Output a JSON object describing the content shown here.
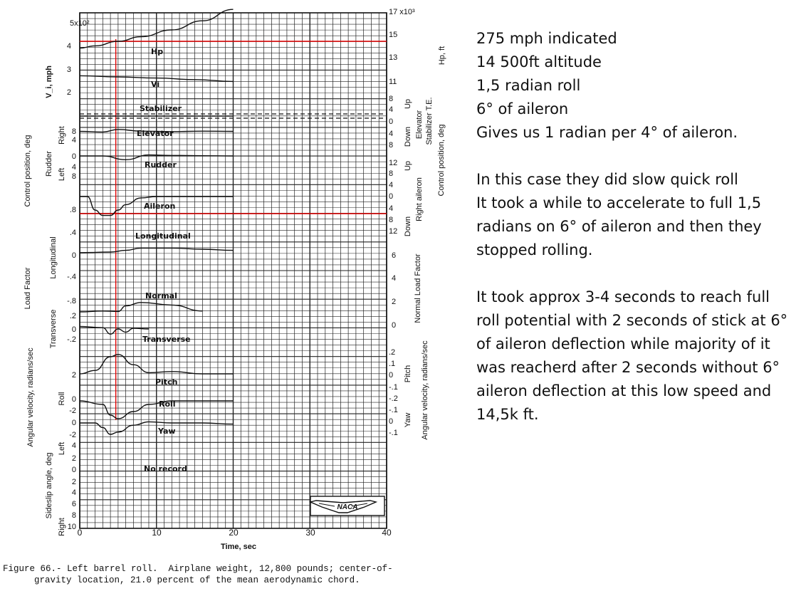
{
  "chart_data": {
    "type": "line",
    "caption_line1": "Figure 66.- Left barrel roll.  Airplane weight, 12,800 pounds; center-of-",
    "caption_line2": "gravity location, 21.0 percent of the mean aerodynamic chord.",
    "xlabel": "Time, sec",
    "x_ticks": [
      "0",
      "10",
      "20",
      "30",
      "40"
    ],
    "xlim": [
      0,
      40
    ],
    "grid": true,
    "logo": "NACA",
    "top_left_multiplier": "5x10²",
    "top_right_multiplier": "17 x10³",
    "left_axis_labels": {
      "velocity": "V_i, mph",
      "control": "Control position, deg",
      "rudder": "Rudder",
      "right": "Right",
      "left": "Left",
      "load": "Load Factor",
      "longitudinal": "Longitudinal",
      "transverse": "Transverse",
      "angular": "Angular velocity, radians/sec",
      "roll": "Roll",
      "sideslip": "Sideslip angle, deg",
      "sideslip_left": "Left",
      "sideslip_right": "Right"
    },
    "right_axis_labels": {
      "hp": "Hp, ft",
      "elevator": "Elevator",
      "stabilizer": "Stabilizer T.E.",
      "up": "Up",
      "down": "Down",
      "right_aileron": "Right aileron",
      "control_position": "Control position, deg",
      "normal": "Normal Load Factor",
      "pitch": "Pitch",
      "yaw": "Yaw",
      "angular": "Angular velocity, radians/sec"
    },
    "left_ticks": [
      {
        "label": "4"
      },
      {
        "label": "3"
      },
      {
        "label": "2"
      },
      {
        "label": "8"
      },
      {
        "label": "4"
      },
      {
        "label": "0"
      },
      {
        "label": "4"
      },
      {
        "label": "8"
      },
      {
        "label": ".8"
      },
      {
        "label": ".4"
      },
      {
        "label": "0"
      },
      {
        "label": "-.4"
      },
      {
        "label": "-.8"
      },
      {
        "label": ".2"
      },
      {
        "label": "0"
      },
      {
        "label": "-.2"
      },
      {
        "label": "2"
      },
      {
        "label": "0"
      },
      {
        "label": "-2"
      },
      {
        "label": "0"
      },
      {
        "label": "-2"
      },
      {
        "label": "4"
      },
      {
        "label": "2"
      },
      {
        "label": "0"
      },
      {
        "label": "2"
      },
      {
        "label": "4"
      },
      {
        "label": "6"
      },
      {
        "label": "8"
      },
      {
        "label": "10"
      }
    ],
    "right_ticks": [
      {
        "label": "15"
      },
      {
        "label": "13"
      },
      {
        "label": "11"
      },
      {
        "label": "8"
      },
      {
        "label": "4"
      },
      {
        "label": "0"
      },
      {
        "label": "4"
      },
      {
        "label": "8"
      },
      {
        "label": "12"
      },
      {
        "label": "8"
      },
      {
        "label": "4"
      },
      {
        "label": "0"
      },
      {
        "label": "4"
      },
      {
        "label": "8"
      },
      {
        "label": "12"
      },
      {
        "label": "6"
      },
      {
        "label": "4"
      },
      {
        "label": "2"
      },
      {
        "label": "0"
      },
      {
        "label": ".2"
      },
      {
        "label": ".1"
      },
      {
        "label": "0"
      },
      {
        "label": "-.1"
      },
      {
        "label": "-.2"
      },
      {
        "label": "-.1"
      },
      {
        "label": "0"
      },
      {
        "label": "-.1"
      }
    ],
    "series": [
      {
        "name": "Hp",
        "x": [
          0,
          2,
          5,
          8,
          12,
          16,
          20
        ],
        "y": [
          14.2,
          14.3,
          14.5,
          14.7,
          15.0,
          15.4,
          15.9
        ]
      },
      {
        "name": "Vi",
        "x": [
          0,
          5,
          10,
          15,
          20
        ],
        "y": [
          2.77,
          2.72,
          2.67,
          2.6,
          2.52
        ]
      },
      {
        "name": "Stabilizer",
        "x": [
          0,
          20
        ],
        "y": [
          0,
          0
        ]
      },
      {
        "name": "Elevator",
        "x": [
          0,
          3,
          5,
          8,
          12,
          16,
          20
        ],
        "y": [
          7.5,
          7.2,
          8.4,
          7.6,
          7.4,
          7.6,
          7.5
        ]
      },
      {
        "name": "Rudder",
        "x": [
          0,
          3,
          6,
          9,
          12,
          16,
          20
        ],
        "y": [
          0,
          0,
          -1.5,
          0.4,
          0.2,
          0.1,
          0
        ]
      },
      {
        "name": "Aileron",
        "x": [
          0,
          1,
          2,
          3,
          4,
          5,
          6,
          8,
          10,
          13,
          20
        ],
        "y": [
          0,
          0,
          5,
          7,
          7,
          5,
          3,
          0.5,
          0,
          0,
          0
        ]
      },
      {
        "name": "Longitudinal",
        "x": [
          0,
          4,
          6,
          8,
          12,
          16,
          20
        ],
        "y": [
          0.04,
          0.05,
          0.08,
          0.12,
          0.12,
          0.1,
          0.08
        ]
      },
      {
        "name": "Normal",
        "x": [
          0,
          3,
          5,
          6,
          8,
          12,
          16
        ],
        "y": [
          0.8,
          0.9,
          0.85,
          1.5,
          1.9,
          1.6,
          0.9
        ]
      },
      {
        "name": "Transverse",
        "x": [
          0,
          3,
          4,
          5,
          6,
          7,
          9
        ],
        "y": [
          0.04,
          0.02,
          -0.08,
          0.0,
          -0.05,
          0.01,
          0.0
        ]
      },
      {
        "name": "Pitch",
        "x": [
          0,
          2,
          4,
          5,
          7,
          9,
          12,
          16,
          20
        ],
        "y": [
          0.0,
          0.03,
          0.15,
          0.17,
          0.08,
          0.01,
          0.02,
          0.0,
          0.0
        ]
      },
      {
        "name": "Roll",
        "x": [
          0,
          3,
          4,
          5,
          7,
          9,
          12,
          16,
          20
        ],
        "y": [
          0.0,
          -0.1,
          -0.4,
          -0.5,
          -0.3,
          -0.1,
          0.0,
          0.0,
          0.0
        ]
      },
      {
        "name": "Yaw",
        "x": [
          0,
          2,
          3,
          4,
          5,
          7,
          9,
          12,
          16,
          20
        ],
        "y": [
          0.0,
          0.0,
          -0.04,
          -0.1,
          -0.08,
          -0.02,
          0.01,
          0.0,
          0.0,
          -0.01
        ]
      }
    ],
    "annotations": {
      "hp": "Hp",
      "vi": "Vi",
      "stabilizer": "Stabilizer",
      "elevator": "Elevator",
      "rudder": "Rudder",
      "aileron": "Aileron",
      "longitudinal": "Longitudinal",
      "normal": "Normal",
      "transverse": "Transverse",
      "pitch": "Pitch",
      "roll": "Roll",
      "yaw": "Yaw",
      "no_record": "No record"
    }
  },
  "notes": {
    "line1": "275 mph indicated",
    "line2": "14 500ft altitude",
    "line3": "1,5 radian roll",
    "line4": "6° of aileron",
    "line5": "Gives us 1 radian per 4° of aileron.",
    "line6": "In this case they did slow quick roll",
    "line7": "It took a while to accelerate to full 1,5",
    "line8": "radians on 6° of aileron and then they",
    "line9": "stopped rolling.",
    "line10": "It took approx 3-4 seconds to reach full",
    "line11": "roll potential with 2 seconds of stick at 6°",
    "line12": "of aileron deflection while majority of it",
    "line13": "was reacherd after 2 seconds without 6°",
    "line14": "aileron deflection at this low speed and",
    "line15": "14,5k ft."
  }
}
